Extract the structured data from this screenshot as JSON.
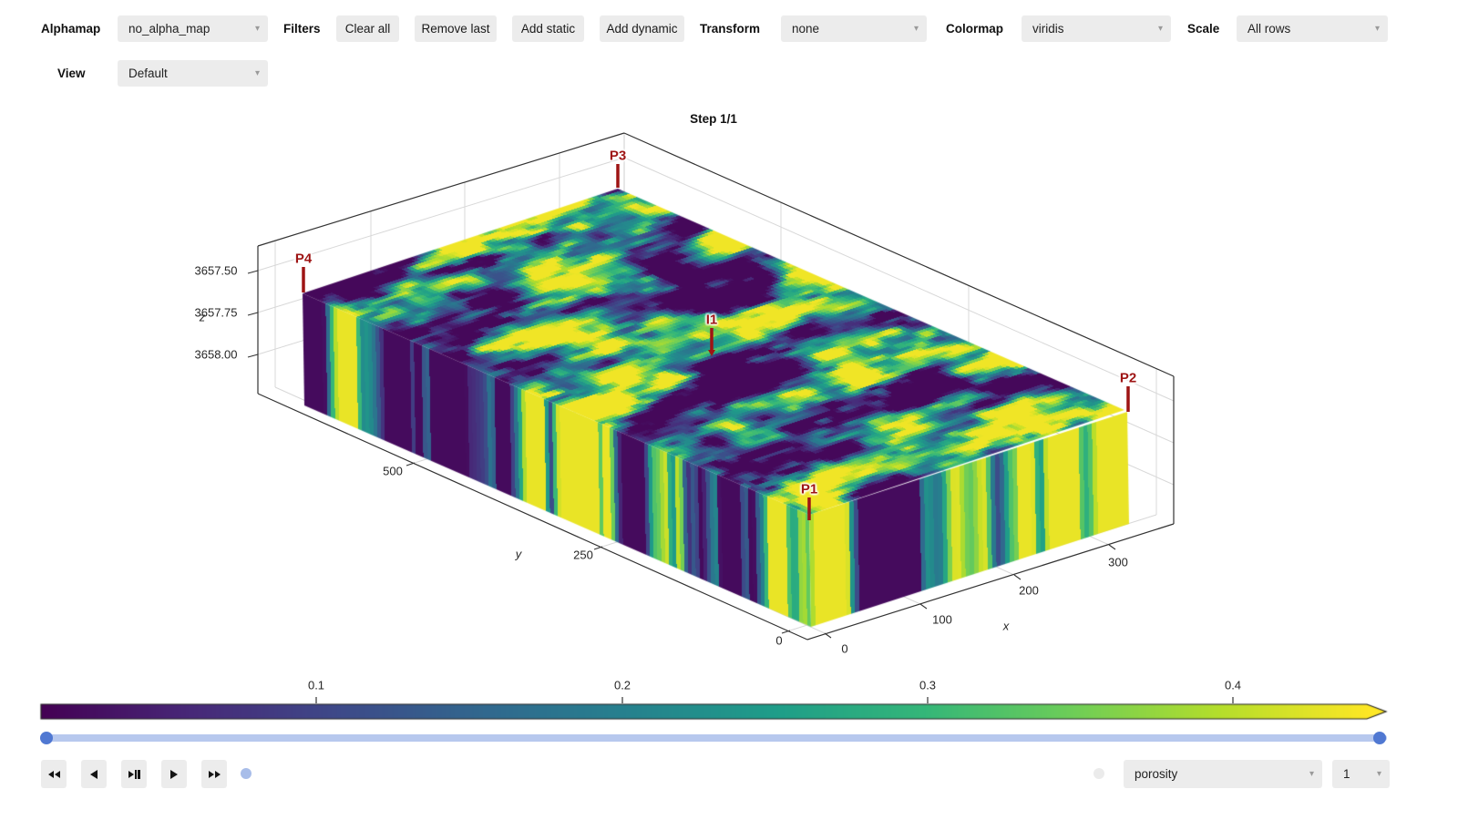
{
  "toolbar": {
    "alphamap": {
      "label": "Alphamap",
      "value": "no_alpha_map"
    },
    "filters": {
      "label": "Filters",
      "buttons": [
        "Clear all",
        "Remove last",
        "Add static",
        "Add dynamic"
      ]
    },
    "transform": {
      "label": "Transform",
      "value": "none"
    },
    "colormap": {
      "label": "Colormap",
      "value": "viridis"
    },
    "scale": {
      "label": "Scale",
      "value": "All rows"
    },
    "view": {
      "label": "View",
      "value": "Default"
    }
  },
  "plot": {
    "title": "Step 1/1",
    "axes": {
      "x": {
        "label": "x",
        "ticks": [
          "0",
          "100",
          "200",
          "300"
        ]
      },
      "y": {
        "label": "y",
        "ticks": [
          "500",
          "250",
          "0"
        ]
      },
      "z": {
        "label": "z",
        "ticks": [
          "3657.50",
          "3657.75",
          "3658.00"
        ]
      }
    },
    "wells": [
      {
        "name": "P3"
      },
      {
        "name": "P4"
      },
      {
        "name": "P2"
      },
      {
        "name": "P1"
      },
      {
        "name": "I1"
      }
    ],
    "well_color": "#9e1414"
  },
  "colorbar": {
    "ticks": [
      "0.1",
      "0.2",
      "0.3",
      "0.4"
    ],
    "colormap": "viridis"
  },
  "slider": {
    "track_color": "#b7c8ee",
    "handle_color": "#5078d2"
  },
  "playback": {
    "buttons": [
      "fast-backward",
      "step-backward",
      "play-pause",
      "play",
      "fast-forward"
    ],
    "indicator_color": "#a8bde9",
    "inactive_indicator_color": "#ebebeb"
  },
  "footer": {
    "array_select": {
      "value": "porosity"
    },
    "index_select": {
      "value": "1"
    }
  },
  "colors": {
    "viridis_stops": [
      "#440154",
      "#482878",
      "#3e4989",
      "#31688e",
      "#26828e",
      "#1f9e89",
      "#35b779",
      "#6ece58",
      "#b5de2b",
      "#fde725"
    ],
    "control_bg": "#ececec",
    "grid_line": "#d8d8d8",
    "box_line": "#333333",
    "tick_text": "#262626"
  }
}
